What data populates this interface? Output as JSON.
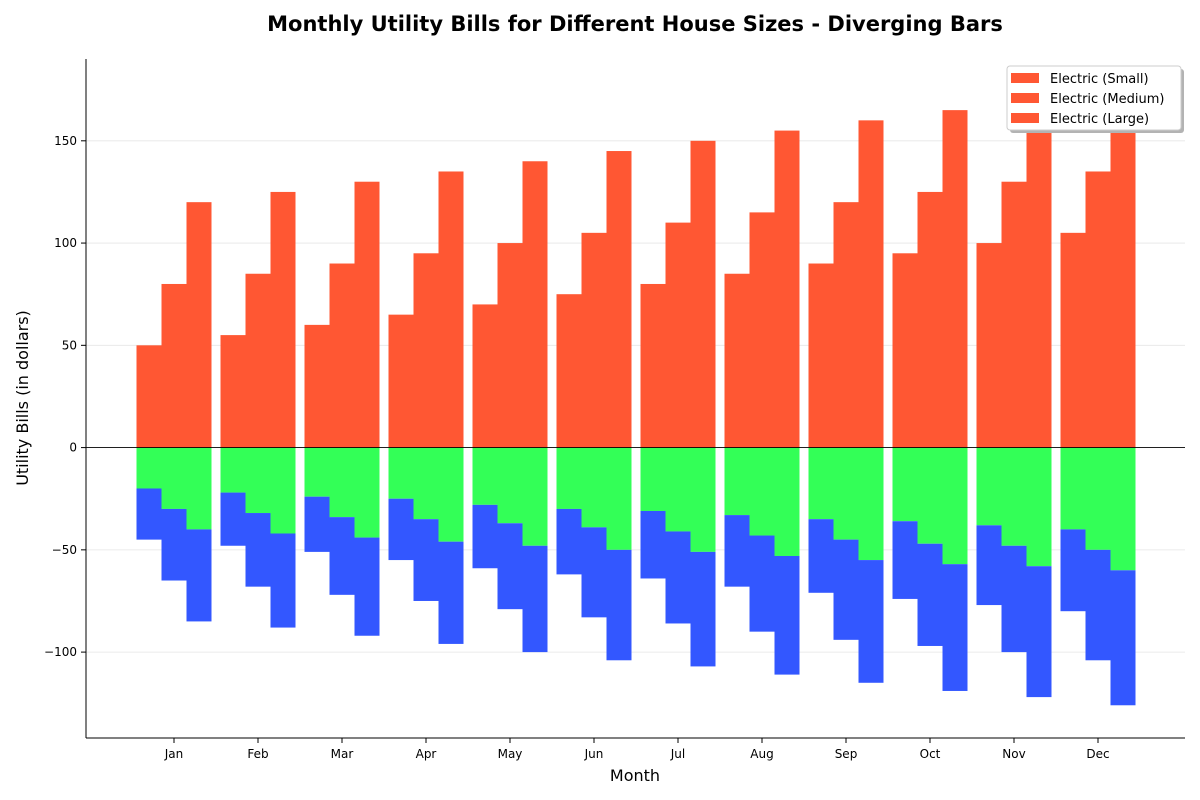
{
  "chart_data": {
    "type": "bar",
    "subtype": "diverging-stacked",
    "title": "Monthly Utility Bills for Different House Sizes - Diverging Bars",
    "xlabel": "Month",
    "ylabel": "Utility Bills (in dollars)",
    "ylim": [
      -142,
      190
    ],
    "yticks": [
      -100,
      -50,
      0,
      50,
      100,
      150
    ],
    "ytick_labels": [
      "−100",
      "−50",
      "0",
      "50",
      "100",
      "150"
    ],
    "grid": "horizontal",
    "categories": [
      "Jan",
      "Feb",
      "Mar",
      "Apr",
      "May",
      "Jun",
      "Jul",
      "Aug",
      "Sep",
      "Oct",
      "Nov",
      "Dec"
    ],
    "house_sizes": [
      "Small",
      "Medium",
      "Large"
    ],
    "electric": {
      "Small": [
        50,
        55,
        60,
        65,
        70,
        75,
        80,
        85,
        90,
        95,
        100,
        105
      ],
      "Medium": [
        80,
        85,
        90,
        95,
        100,
        105,
        110,
        115,
        120,
        125,
        130,
        135
      ],
      "Large": [
        120,
        125,
        130,
        135,
        140,
        145,
        150,
        155,
        160,
        165,
        170,
        175
      ]
    },
    "gas_negative": {
      "Small": [
        -20,
        -22,
        -24,
        -25,
        -28,
        -30,
        -31,
        -33,
        -35,
        -36,
        -38,
        -40
      ],
      "Medium": [
        -30,
        -32,
        -34,
        -35,
        -37,
        -39,
        -41,
        -43,
        -45,
        -47,
        -48,
        -50
      ],
      "Large": [
        -40,
        -42,
        -44,
        -46,
        -48,
        -50,
        -51,
        -53,
        -55,
        -57,
        -58,
        -60
      ]
    },
    "water_negative": {
      "Small": [
        -25,
        -26,
        -27,
        -30,
        -31,
        -32,
        -33,
        -35,
        -36,
        -38,
        -39,
        -40
      ],
      "Medium": [
        -35,
        -36,
        -38,
        -40,
        -42,
        -44,
        -45,
        -47,
        -49,
        -50,
        -52,
        -54
      ],
      "Large": [
        -45,
        -46,
        -48,
        -50,
        -52,
        -54,
        -56,
        -58,
        -60,
        -62,
        -64,
        -66
      ]
    },
    "colors": {
      "electric": "#ff5733",
      "gas": "#33ff57",
      "water": "#3357ff"
    },
    "legend": {
      "position": "top-right",
      "entries": [
        "Electric (Small)",
        "Electric (Medium)",
        "Electric (Large)"
      ]
    }
  }
}
